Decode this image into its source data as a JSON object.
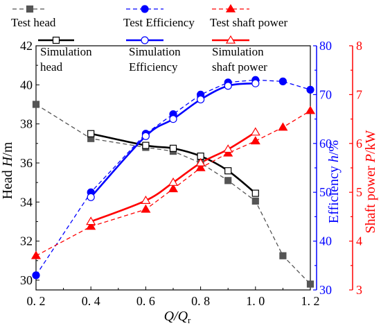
{
  "chart_data": {
    "type": "line",
    "xlabel": "Q/Q",
    "xlabel_sub": "r",
    "x_ticks": [
      "0. 2",
      "0. 4",
      "0. 6",
      "0. 8",
      "1. 0",
      "1. 2"
    ],
    "xlim": [
      0.2,
      1.2
    ],
    "axes": {
      "head": {
        "label_prefix": "Head ",
        "label_var": "H",
        "label_unit": "/m",
        "ylim": [
          29.5,
          42
        ],
        "ticks": [
          30,
          32,
          34,
          36,
          38,
          40,
          42
        ],
        "color": "#000000"
      },
      "efficiency": {
        "label_prefix": "Efficiency ",
        "label_var": "h",
        "label_unit": "/%",
        "ylim": [
          30,
          80
        ],
        "ticks": [
          30,
          40,
          50,
          60,
          70,
          80
        ],
        "color": "#0000ff"
      },
      "power": {
        "label_prefix": "Shaft power ",
        "label_var": "P",
        "label_unit": "/kW",
        "ylim": [
          3,
          8
        ],
        "ticks": [
          3,
          4,
          5,
          6,
          7,
          8
        ],
        "color": "#ff0000"
      }
    },
    "series": [
      {
        "name": "Test head",
        "axis": "head",
        "style": "dashed",
        "marker": "square-filled",
        "color": "#555555",
        "x": [
          0.2,
          0.4,
          0.6,
          0.7,
          0.8,
          0.9,
          1.0,
          1.1,
          1.2
        ],
        "y": [
          39.0,
          37.25,
          36.8,
          36.6,
          36.0,
          35.1,
          34.05,
          31.25,
          29.8
        ]
      },
      {
        "name": "Simulation head",
        "axis": "head",
        "style": "solid",
        "marker": "square-open",
        "color": "#000000",
        "x": [
          0.4,
          0.6,
          0.7,
          0.8,
          0.9,
          1.0
        ],
        "y": [
          37.5,
          36.9,
          36.75,
          36.35,
          35.6,
          34.45
        ]
      },
      {
        "name": "Test Efficiency",
        "axis": "efficiency",
        "style": "dashed",
        "marker": "circle-filled",
        "color": "#0000ff",
        "x": [
          0.2,
          0.4,
          0.6,
          0.7,
          0.8,
          0.9,
          1.0,
          1.1,
          1.2
        ],
        "y": [
          33.0,
          50.0,
          62.0,
          66.0,
          70.0,
          72.5,
          73.0,
          72.7,
          71.0
        ]
      },
      {
        "name": "Simulation Efficiency",
        "axis": "efficiency",
        "style": "solid",
        "marker": "circle-open",
        "color": "#0000ff",
        "x": [
          0.4,
          0.6,
          0.7,
          0.8,
          0.9,
          1.0
        ],
        "y": [
          49.0,
          61.5,
          65.0,
          69.0,
          71.8,
          72.3
        ]
      },
      {
        "name": "Test shaft power",
        "axis": "power",
        "style": "dashed",
        "marker": "triangle-filled",
        "color": "#ff0000",
        "x": [
          0.2,
          0.4,
          0.6,
          0.7,
          0.8,
          0.9,
          1.0,
          1.1,
          1.2
        ],
        "y": [
          3.7,
          4.3,
          4.65,
          5.07,
          5.5,
          5.8,
          6.05,
          6.33,
          6.67
        ]
      },
      {
        "name": "Simulation shaft power",
        "axis": "power",
        "style": "solid",
        "marker": "triangle-open",
        "color": "#ff0000",
        "x": [
          0.4,
          0.6,
          0.7,
          0.8,
          0.9,
          1.0
        ],
        "y": [
          4.4,
          4.83,
          5.2,
          5.6,
          5.88,
          6.23
        ]
      }
    ],
    "legend": {
      "placement": "top",
      "entries": [
        {
          "series": 0,
          "lines": [
            "Test head"
          ]
        },
        {
          "series": 1,
          "lines": [
            "Simulation",
            "head"
          ]
        },
        {
          "series": 2,
          "lines": [
            "Test Efficiency"
          ]
        },
        {
          "series": 3,
          "lines": [
            "Simulation",
            "Efficiency"
          ]
        },
        {
          "series": 4,
          "lines": [
            "Test shaft power"
          ]
        },
        {
          "series": 5,
          "lines": [
            "Simulation",
            "shaft power"
          ]
        }
      ]
    }
  }
}
